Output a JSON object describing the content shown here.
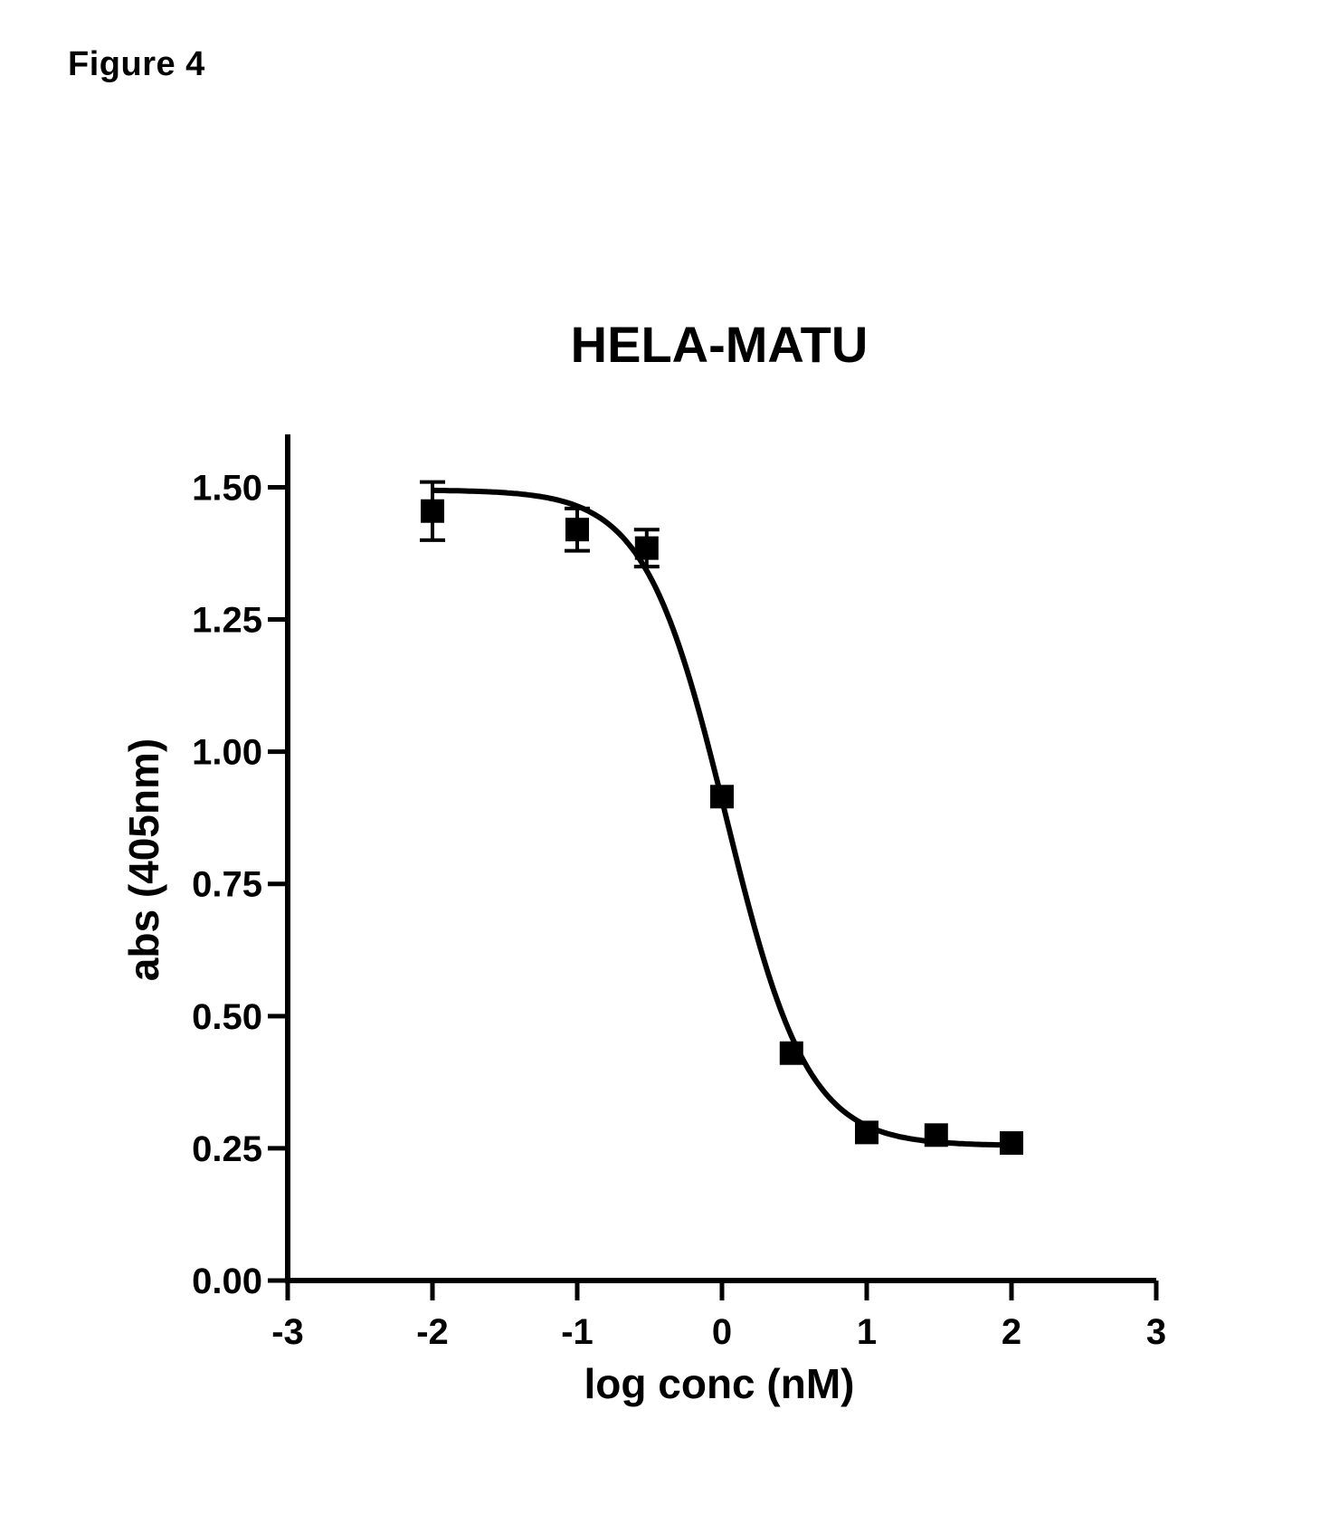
{
  "figure_label": "Figure 4",
  "chart_data": {
    "type": "scatter",
    "title": "HELA-MATU",
    "xlabel": "log conc (nM)",
    "ylabel": "abs (405nm)",
    "xlim": [
      -3,
      3
    ],
    "ylim": [
      0,
      1.6
    ],
    "xticks": [
      -3,
      -2,
      -1,
      0,
      1,
      2,
      3
    ],
    "xtick_labels": [
      "-3",
      "-2",
      "-1",
      "0",
      "1",
      "2",
      "3"
    ],
    "yticks": [
      0,
      0.25,
      0.5,
      0.75,
      1.0,
      1.25,
      1.5
    ],
    "ytick_labels": [
      "0.00",
      "0.25",
      "0.50",
      "0.75",
      "1.00",
      "1.25",
      "1.50"
    ],
    "grid": false,
    "series": [
      {
        "x": [
          -2,
          -1,
          -0.52,
          0,
          0.48,
          1,
          1.48,
          2
        ],
        "y": [
          1.455,
          1.42,
          1.385,
          0.915,
          0.43,
          0.28,
          0.275,
          0.26
        ],
        "error": [
          0.055,
          0.04,
          0.035,
          0,
          0,
          0,
          0,
          0
        ],
        "marker": "square"
      }
    ],
    "fit_curve": {
      "model": "sigmoidal dose-response",
      "top": 1.495,
      "bottom": 0.255,
      "log_ec50": 0.03,
      "hill_slope": -1.55
    }
  }
}
